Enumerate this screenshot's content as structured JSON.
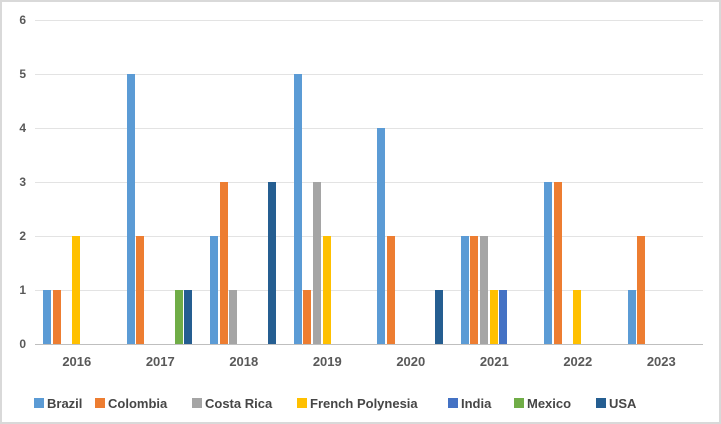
{
  "chart_data": {
    "type": "bar",
    "title": "",
    "xlabel": "",
    "ylabel": "",
    "categories": [
      "2016",
      "2017",
      "2018",
      "2019",
      "2020",
      "2021",
      "2022",
      "2023"
    ],
    "series": [
      {
        "name": "Brazil",
        "color": "#5B9BD5",
        "values": [
          1,
          5,
          2,
          5,
          4,
          2,
          3,
          1
        ]
      },
      {
        "name": "Colombia",
        "color": "#ED7D31",
        "values": [
          1,
          2,
          3,
          1,
          2,
          2,
          3,
          2
        ]
      },
      {
        "name": "Costa Rica",
        "color": "#A5A5A5",
        "values": [
          0,
          0,
          1,
          3,
          0,
          2,
          0,
          0
        ]
      },
      {
        "name": "French Polynesia",
        "color": "#FFC000",
        "values": [
          2,
          0,
          0,
          2,
          0,
          1,
          1,
          0
        ]
      },
      {
        "name": "India",
        "color": "#4472C4",
        "values": [
          0,
          0,
          0,
          0,
          0,
          1,
          0,
          0
        ]
      },
      {
        "name": "Mexico",
        "color": "#70AD47",
        "values": [
          0,
          1,
          0,
          0,
          0,
          0,
          0,
          0
        ]
      },
      {
        "name": "USA",
        "color": "#255E91",
        "values": [
          0,
          1,
          3,
          0,
          1,
          0,
          0,
          0
        ]
      }
    ],
    "y_ticks": [
      0,
      1,
      2,
      3,
      4,
      5,
      6
    ],
    "ylim": [
      0,
      6
    ],
    "grid": "horizontal",
    "legend_position": "bottom",
    "colors": {
      "background": "#FFFFFF",
      "frame_border": "#D9D9D9",
      "gridline": "#E3E3E3",
      "axis_line": "#BFBFBF",
      "axis_text": "#595959",
      "legend_text": "#464646"
    }
  }
}
